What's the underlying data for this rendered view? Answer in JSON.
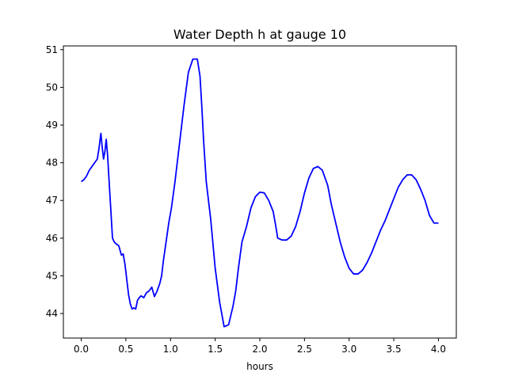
{
  "chart_data": {
    "type": "line",
    "title": "Water Depth h at gauge 10",
    "xlabel": "hours",
    "ylabel": "",
    "xlim": [
      -0.2,
      4.2
    ],
    "ylim": [
      43.35,
      51.1
    ],
    "grid": false,
    "xticks": [
      0.0,
      0.5,
      1.0,
      1.5,
      2.0,
      2.5,
      3.0,
      3.5,
      4.0
    ],
    "xtick_labels": [
      "0.0",
      "0.5",
      "1.0",
      "1.5",
      "2.0",
      "2.5",
      "3.0",
      "3.5",
      "4.0"
    ],
    "yticks": [
      44,
      45,
      46,
      47,
      48,
      49,
      50,
      51
    ],
    "ytick_labels": [
      "44",
      "45",
      "46",
      "47",
      "48",
      "49",
      "50",
      "51"
    ],
    "series": [
      {
        "color": "#0000ff",
        "x": [
          0.0,
          0.03,
          0.06,
          0.09,
          0.12,
          0.15,
          0.18,
          0.2,
          0.22,
          0.235,
          0.25,
          0.265,
          0.28,
          0.295,
          0.31,
          0.33,
          0.35,
          0.37,
          0.39,
          0.42,
          0.45,
          0.47,
          0.49,
          0.51,
          0.53,
          0.55,
          0.57,
          0.59,
          0.61,
          0.63,
          0.65,
          0.67,
          0.7,
          0.73,
          0.76,
          0.79,
          0.82,
          0.85,
          0.88,
          0.9,
          0.92,
          0.95,
          0.98,
          1.01,
          1.05,
          1.1,
          1.15,
          1.2,
          1.25,
          1.3,
          1.33,
          1.35,
          1.37,
          1.4,
          1.45,
          1.5,
          1.55,
          1.6,
          1.65,
          1.7,
          1.73,
          1.76,
          1.8,
          1.85,
          1.9,
          1.95,
          2.0,
          2.05,
          2.1,
          2.15,
          2.18,
          2.2,
          2.25,
          2.3,
          2.35,
          2.4,
          2.45,
          2.5,
          2.55,
          2.6,
          2.65,
          2.7,
          2.73,
          2.76,
          2.8,
          2.85,
          2.9,
          2.95,
          3.0,
          3.05,
          3.1,
          3.15,
          3.2,
          3.25,
          3.3,
          3.35,
          3.4,
          3.45,
          3.5,
          3.55,
          3.6,
          3.65,
          3.7,
          3.75,
          3.8,
          3.85,
          3.9,
          3.95,
          4.0
        ],
        "y": [
          47.5,
          47.55,
          47.65,
          47.8,
          47.9,
          48.0,
          48.1,
          48.4,
          48.78,
          48.4,
          48.1,
          48.3,
          48.62,
          48.2,
          47.6,
          46.8,
          46.0,
          45.9,
          45.85,
          45.8,
          45.55,
          45.58,
          45.3,
          44.9,
          44.5,
          44.25,
          44.12,
          44.15,
          44.12,
          44.35,
          44.42,
          44.47,
          44.42,
          44.55,
          44.6,
          44.7,
          44.45,
          44.6,
          44.8,
          45.0,
          45.4,
          45.9,
          46.4,
          46.8,
          47.5,
          48.5,
          49.5,
          50.4,
          50.75,
          50.75,
          50.3,
          49.5,
          48.6,
          47.5,
          46.5,
          45.2,
          44.3,
          43.65,
          43.7,
          44.2,
          44.6,
          45.2,
          45.9,
          46.3,
          46.8,
          47.1,
          47.22,
          47.2,
          47.0,
          46.7,
          46.3,
          46.0,
          45.95,
          45.95,
          46.05,
          46.3,
          46.7,
          47.2,
          47.6,
          47.85,
          47.9,
          47.8,
          47.6,
          47.4,
          46.9,
          46.4,
          45.9,
          45.5,
          45.2,
          45.05,
          45.05,
          45.15,
          45.35,
          45.6,
          45.9,
          46.2,
          46.45,
          46.75,
          47.05,
          47.35,
          47.55,
          47.68,
          47.68,
          47.55,
          47.3,
          47.0,
          46.6,
          46.4,
          46.4
        ]
      }
    ]
  }
}
